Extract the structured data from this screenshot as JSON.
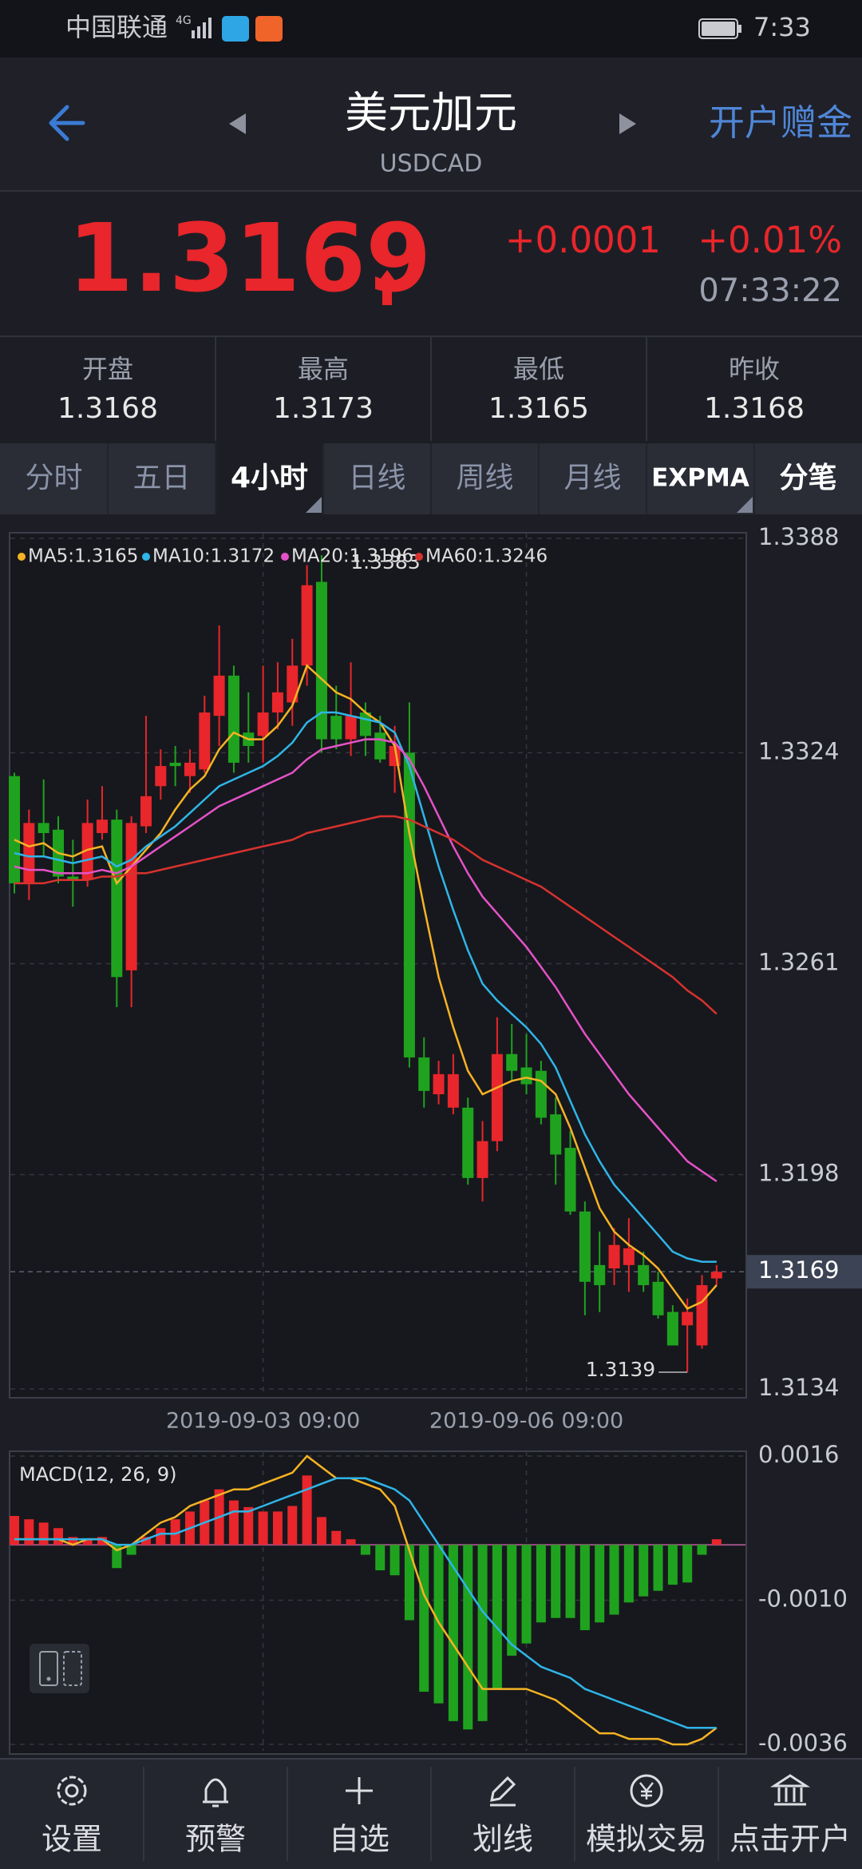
{
  "status_bar": {
    "carrier": "中国联通",
    "network": "4G",
    "time": "7:33"
  },
  "header": {
    "title": "美元加元",
    "symbol": "USDCAD",
    "action": "开户赠金"
  },
  "quote": {
    "price": "1.3169",
    "change": "+0.0001",
    "change_pct": "+0.01%",
    "time": "07:33:22"
  },
  "stats": [
    {
      "label": "开盘",
      "value": "1.3168"
    },
    {
      "label": "最高",
      "value": "1.3173"
    },
    {
      "label": "最低",
      "value": "1.3165"
    },
    {
      "label": "昨收",
      "value": "1.3168"
    }
  ],
  "tabs": [
    {
      "label": "分时",
      "active": false
    },
    {
      "label": "五日",
      "active": false
    },
    {
      "label": "4小时",
      "active": true
    },
    {
      "label": "日线",
      "active": false
    },
    {
      "label": "周线",
      "active": false
    },
    {
      "label": "月线",
      "active": false
    },
    {
      "label": "EXPMA",
      "active": false
    },
    {
      "label": "分笔",
      "active": false
    }
  ],
  "chart_data": [
    {
      "type": "candlestick",
      "categories": [
        null,
        null,
        null,
        null,
        null,
        null,
        null,
        null,
        null,
        null,
        null,
        null,
        null,
        null,
        null,
        null,
        null,
        "2019-09-03 09:00",
        null,
        null,
        null,
        null,
        null,
        null,
        null,
        null,
        null,
        null,
        null,
        null,
        null,
        null,
        null,
        null,
        null,
        "2019-09-06 09:00",
        null,
        null,
        null,
        null,
        null,
        null,
        null,
        null,
        null,
        null,
        null,
        null,
        null
      ],
      "candles": [
        {
          "open": 1.3317,
          "high": 1.3318,
          "low": 1.3282,
          "close": 1.3285
        },
        {
          "open": 1.3285,
          "high": 1.3307,
          "low": 1.328,
          "close": 1.3303
        },
        {
          "open": 1.3303,
          "high": 1.3316,
          "low": 1.3293,
          "close": 1.33
        },
        {
          "open": 1.3301,
          "high": 1.3305,
          "low": 1.3285,
          "close": 1.3287
        },
        {
          "open": 1.3287,
          "high": 1.3298,
          "low": 1.3278,
          "close": 1.3286
        },
        {
          "open": 1.3286,
          "high": 1.331,
          "low": 1.3284,
          "close": 1.3303
        },
        {
          "open": 1.33,
          "high": 1.3314,
          "low": 1.3298,
          "close": 1.3304
        },
        {
          "open": 1.3304,
          "high": 1.3307,
          "low": 1.3248,
          "close": 1.3257
        },
        {
          "open": 1.3259,
          "high": 1.3305,
          "low": 1.3248,
          "close": 1.3303
        },
        {
          "open": 1.3302,
          "high": 1.3335,
          "low": 1.33,
          "close": 1.3311
        },
        {
          "open": 1.3314,
          "high": 1.3325,
          "low": 1.331,
          "close": 1.332
        },
        {
          "open": 1.3321,
          "high": 1.3326,
          "low": 1.3314,
          "close": 1.332
        },
        {
          "open": 1.3317,
          "high": 1.3325,
          "low": 1.3312,
          "close": 1.3321
        },
        {
          "open": 1.3319,
          "high": 1.3341,
          "low": 1.3318,
          "close": 1.3336
        },
        {
          "open": 1.3335,
          "high": 1.3362,
          "low": 1.3326,
          "close": 1.3347
        },
        {
          "open": 1.3347,
          "high": 1.335,
          "low": 1.3318,
          "close": 1.3321
        },
        {
          "open": 1.333,
          "high": 1.3342,
          "low": 1.3321,
          "close": 1.3326
        },
        {
          "open": 1.3329,
          "high": 1.335,
          "low": 1.3321,
          "close": 1.3336
        },
        {
          "open": 1.3336,
          "high": 1.3351,
          "low": 1.3331,
          "close": 1.3342
        },
        {
          "open": 1.3339,
          "high": 1.3358,
          "low": 1.3332,
          "close": 1.335
        },
        {
          "open": 1.335,
          "high": 1.338,
          "low": 1.3344,
          "close": 1.3374
        },
        {
          "open": 1.3375,
          "high": 1.3383,
          "low": 1.3324,
          "close": 1.3328
        },
        {
          "open": 1.3335,
          "high": 1.3344,
          "low": 1.3325,
          "close": 1.3328
        },
        {
          "open": 1.3328,
          "high": 1.3351,
          "low": 1.3323,
          "close": 1.3335
        },
        {
          "open": 1.3336,
          "high": 1.3339,
          "low": 1.3323,
          "close": 1.3329
        },
        {
          "open": 1.333,
          "high": 1.3335,
          "low": 1.3321,
          "close": 1.3322
        },
        {
          "open": 1.332,
          "high": 1.3332,
          "low": 1.3312,
          "close": 1.3326
        },
        {
          "open": 1.3324,
          "high": 1.3339,
          "low": 1.323,
          "close": 1.3233
        },
        {
          "open": 1.3233,
          "high": 1.3239,
          "low": 1.3218,
          "close": 1.3223
        },
        {
          "open": 1.3222,
          "high": 1.3232,
          "low": 1.3219,
          "close": 1.3228
        },
        {
          "open": 1.3218,
          "high": 1.3234,
          "low": 1.3216,
          "close": 1.3228
        },
        {
          "open": 1.3218,
          "high": 1.3221,
          "low": 1.3195,
          "close": 1.3197
        },
        {
          "open": 1.3197,
          "high": 1.3214,
          "low": 1.319,
          "close": 1.3208
        },
        {
          "open": 1.3208,
          "high": 1.3245,
          "low": 1.3205,
          "close": 1.3234
        },
        {
          "open": 1.3234,
          "high": 1.3243,
          "low": 1.3226,
          "close": 1.3229
        },
        {
          "open": 1.323,
          "high": 1.324,
          "low": 1.3222,
          "close": 1.3225
        },
        {
          "open": 1.3229,
          "high": 1.3232,
          "low": 1.3213,
          "close": 1.3215
        },
        {
          "open": 1.3216,
          "high": 1.3221,
          "low": 1.3195,
          "close": 1.3204
        },
        {
          "open": 1.3206,
          "high": 1.3211,
          "low": 1.3186,
          "close": 1.3187
        },
        {
          "open": 1.3187,
          "high": 1.319,
          "low": 1.3156,
          "close": 1.3166
        },
        {
          "open": 1.3171,
          "high": 1.3181,
          "low": 1.3157,
          "close": 1.3165
        },
        {
          "open": 1.317,
          "high": 1.3182,
          "low": 1.3165,
          "close": 1.3177
        },
        {
          "open": 1.3171,
          "high": 1.3185,
          "low": 1.3163,
          "close": 1.3176
        },
        {
          "open": 1.3171,
          "high": 1.3175,
          "low": 1.3163,
          "close": 1.3165
        },
        {
          "open": 1.3166,
          "high": 1.3169,
          "low": 1.3155,
          "close": 1.3156
        },
        {
          "open": 1.3157,
          "high": 1.3159,
          "low": 1.3147,
          "close": 1.3147
        },
        {
          "open": 1.3153,
          "high": 1.3161,
          "low": 1.3139,
          "close": 1.3157
        },
        {
          "open": 1.3147,
          "high": 1.3168,
          "low": 1.3146,
          "close": 1.3165
        },
        {
          "open": 1.3167,
          "high": 1.3171,
          "low": 1.3165,
          "close": 1.3169
        }
      ],
      "up_color": "#e8262b",
      "down_color": "#1fa31f",
      "series": [
        {
          "name": "MA5:1.3165",
          "color": "#f5b324",
          "values": [
            1.3298,
            1.3296,
            1.3297,
            1.3294,
            1.3293,
            1.3295,
            1.3296,
            1.3285,
            1.329,
            1.3295,
            1.33,
            1.3307,
            1.3313,
            1.3317,
            1.3325,
            1.333,
            1.3328,
            1.3328,
            1.3332,
            1.3338,
            1.335,
            1.3346,
            1.3342,
            1.334,
            1.3336,
            1.3333,
            1.3326,
            1.33,
            1.3278,
            1.3257,
            1.3242,
            1.3229,
            1.3222,
            1.3224,
            1.3226,
            1.3227,
            1.3226,
            1.3222,
            1.3212,
            1.32,
            1.3188,
            1.3181,
            1.3177,
            1.3174,
            1.317,
            1.3164,
            1.3158,
            1.316,
            1.3165
          ]
        },
        {
          "name": "MA10:1.3172",
          "color": "#2fb5e8",
          "values": [
            1.3294,
            1.3293,
            1.3293,
            1.3292,
            1.3291,
            1.3292,
            1.3293,
            1.329,
            1.3292,
            1.3296,
            1.3299,
            1.3302,
            1.3306,
            1.331,
            1.3314,
            1.3316,
            1.3318,
            1.332,
            1.3323,
            1.3327,
            1.3333,
            1.3336,
            1.3336,
            1.3335,
            1.3334,
            1.3333,
            1.333,
            1.332,
            1.3305,
            1.329,
            1.3277,
            1.3265,
            1.3255,
            1.325,
            1.3246,
            1.3242,
            1.3237,
            1.323,
            1.322,
            1.321,
            1.3202,
            1.3195,
            1.319,
            1.3185,
            1.318,
            1.3175,
            1.3173,
            1.3172,
            1.3172
          ]
        },
        {
          "name": "MA20:1.3196",
          "color": "#e552c8",
          "values": [
            1.329,
            1.3289,
            1.3289,
            1.3288,
            1.3288,
            1.3288,
            1.3289,
            1.3288,
            1.329,
            1.3293,
            1.3296,
            1.3299,
            1.3302,
            1.3305,
            1.3308,
            1.331,
            1.3312,
            1.3314,
            1.3316,
            1.3318,
            1.3322,
            1.3325,
            1.3326,
            1.3327,
            1.3328,
            1.3328,
            1.3327,
            1.3322,
            1.3314,
            1.3305,
            1.3296,
            1.3288,
            1.3281,
            1.3276,
            1.3271,
            1.3266,
            1.326,
            1.3254,
            1.3247,
            1.324,
            1.3234,
            1.3228,
            1.3222,
            1.3217,
            1.3212,
            1.3207,
            1.3202,
            1.3199,
            1.3196
          ]
        },
        {
          "name": "MA60:1.3246",
          "color": "#d8322e",
          "values": [
            1.3285,
            1.3285,
            1.3285,
            1.3286,
            1.3286,
            1.3286,
            1.3287,
            1.3287,
            1.3288,
            1.3288,
            1.3289,
            1.329,
            1.3291,
            1.3292,
            1.3293,
            1.3294,
            1.3295,
            1.3296,
            1.3297,
            1.3298,
            1.33,
            1.3301,
            1.3302,
            1.3303,
            1.3304,
            1.3305,
            1.3305,
            1.3304,
            1.3302,
            1.33,
            1.3298,
            1.3295,
            1.3292,
            1.329,
            1.3288,
            1.3286,
            1.3284,
            1.3281,
            1.3278,
            1.3275,
            1.3272,
            1.3269,
            1.3266,
            1.3263,
            1.326,
            1.3257,
            1.3253,
            1.325,
            1.3246
          ]
        }
      ],
      "ylim": [
        1.3134,
        1.3388
      ],
      "yticks": [
        1.3388,
        1.3324,
        1.3261,
        1.3198,
        1.3134
      ],
      "current": 1.3169,
      "grid": true
    },
    {
      "type": "macd",
      "title": "MACD(12, 26, 9)",
      "values": [
        0.00052,
        0.00046,
        0.0004,
        0.0003,
        0.00014,
        0.0001,
        0.00014,
        -0.00042,
        -0.00018,
        0.00014,
        0.0003,
        0.00046,
        0.0006,
        0.0008,
        0.001,
        0.0008,
        0.00068,
        0.0006,
        0.0006,
        0.0007,
        0.00125,
        0.0005,
        0.00025,
        0.0001,
        -0.00018,
        -0.00046,
        -0.00055,
        -0.00136,
        -0.00265,
        -0.00286,
        -0.00318,
        -0.00333,
        -0.00318,
        -0.0026,
        -0.002,
        -0.00178,
        -0.0014,
        -0.00132,
        -0.00132,
        -0.00154,
        -0.0014,
        -0.00126,
        -0.00104,
        -0.00093,
        -0.00083,
        -0.00072,
        -0.00068,
        -0.00018,
        0.0001
      ],
      "up_color": "#e8262b",
      "down_color": "#1fa31f",
      "series": [
        {
          "color": "#f5b324",
          "values": [
            0.0001,
            0.0001,
            0.0001,
            0.0001,
            0,
            0.0001,
            0.0001,
            -0.0001,
            0,
            0.0002,
            0.0004,
            0.0005,
            0.0007,
            0.0008,
            0.0009,
            0.001,
            0.001,
            0.0011,
            0.0012,
            0.0013,
            0.0016,
            0.0014,
            0.0012,
            0.0012,
            0.0011,
            0.001,
            0.0007,
            -0.0001,
            -0.0009,
            -0.0014,
            -0.0018,
            -0.0022,
            -0.0026,
            -0.0026,
            -0.0026,
            -0.0026,
            -0.0027,
            -0.0028,
            -0.003,
            -0.0032,
            -0.0034,
            -0.0034,
            -0.0035,
            -0.0035,
            -0.0035,
            -0.0036,
            -0.0036,
            -0.0035,
            -0.0033
          ]
        },
        {
          "color": "#2fb5e8",
          "values": [
            0.0001,
            0.0001,
            0.0001,
            0.0001,
            0.0001,
            0.0001,
            0.0001,
            0,
            0,
            0.0001,
            0.0002,
            0.0002,
            0.0003,
            0.0004,
            0.0005,
            0.0006,
            0.0006,
            0.0007,
            0.0008,
            0.0009,
            0.001,
            0.0011,
            0.0012,
            0.0012,
            0.0012,
            0.0011,
            0.001,
            0.0008,
            0.0004,
            0,
            -0.0004,
            -0.0008,
            -0.0012,
            -0.0015,
            -0.0018,
            -0.002,
            -0.0022,
            -0.0023,
            -0.0024,
            -0.0026,
            -0.0027,
            -0.0028,
            -0.0029,
            -0.003,
            -0.0031,
            -0.0032,
            -0.0033,
            -0.0033,
            -0.0033
          ]
        }
      ],
      "ylim": [
        -0.0036,
        0.0016
      ],
      "yticks": [
        0.0016,
        {
          "value": -0.001,
          "label": "-0.0010"
        },
        -0.0036
      ],
      "grid": true
    }
  ],
  "nav": [
    "设置",
    "预警",
    "自选",
    "划线",
    "模拟交易",
    "点击开户"
  ]
}
